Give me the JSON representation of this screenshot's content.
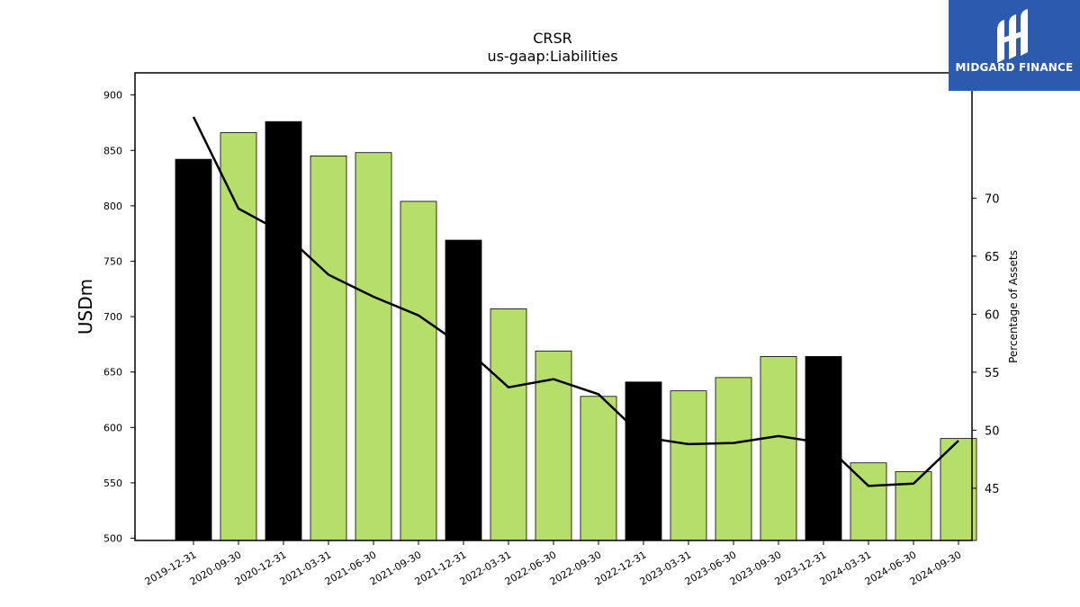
{
  "chart_data": {
    "type": "bar",
    "title": "CRSR",
    "subtitle": "us-gaap:Liabilities",
    "ylabel": "USDm",
    "y2label": "Percentage of Assets",
    "categories": [
      "2019-12-31",
      "2020-09-30",
      "2020-12-31",
      "2021-03-31",
      "2021-06-30",
      "2021-09-30",
      "2021-12-31",
      "2022-03-31",
      "2022-06-30",
      "2022-09-30",
      "2022-12-31",
      "2023-03-31",
      "2023-06-30",
      "2023-09-30",
      "2023-12-31",
      "2024-03-31",
      "2024-06-30",
      "2024-09-30"
    ],
    "series": [
      {
        "type": "bar",
        "axis": "left",
        "values": [
          842,
          866,
          876,
          845,
          848,
          804,
          769,
          707,
          669,
          628,
          641,
          633,
          645,
          664,
          664,
          568,
          560,
          590
        ],
        "colors": [
          "#000000",
          "#b5df6a",
          "#000000",
          "#b5df6a",
          "#b5df6a",
          "#b5df6a",
          "#000000",
          "#b5df6a",
          "#b5df6a",
          "#b5df6a",
          "#000000",
          "#b5df6a",
          "#b5df6a",
          "#b5df6a",
          "#000000",
          "#b5df6a",
          "#b5df6a",
          "#b5df6a"
        ]
      },
      {
        "type": "line",
        "axis": "right",
        "color": "#000000",
        "values": [
          77.0,
          69.1,
          67.0,
          63.4,
          61.5,
          59.9,
          57.2,
          53.7,
          54.4,
          53.1,
          49.4,
          48.8,
          48.9,
          49.5,
          48.9,
          45.2,
          45.4,
          49.1
        ]
      }
    ],
    "ylim": [
      498,
      920
    ],
    "yticks": [
      500,
      550,
      600,
      650,
      700,
      750,
      800,
      850,
      900
    ],
    "y2lim": [
      40.5,
      80.8
    ],
    "y2ticks": [
      45,
      50,
      55,
      60,
      65,
      70
    ],
    "grid": false
  },
  "logo": {
    "text": "MIDGARD FINANCE",
    "background": "#2c5bae",
    "icon": "midgard-logo-icon"
  }
}
